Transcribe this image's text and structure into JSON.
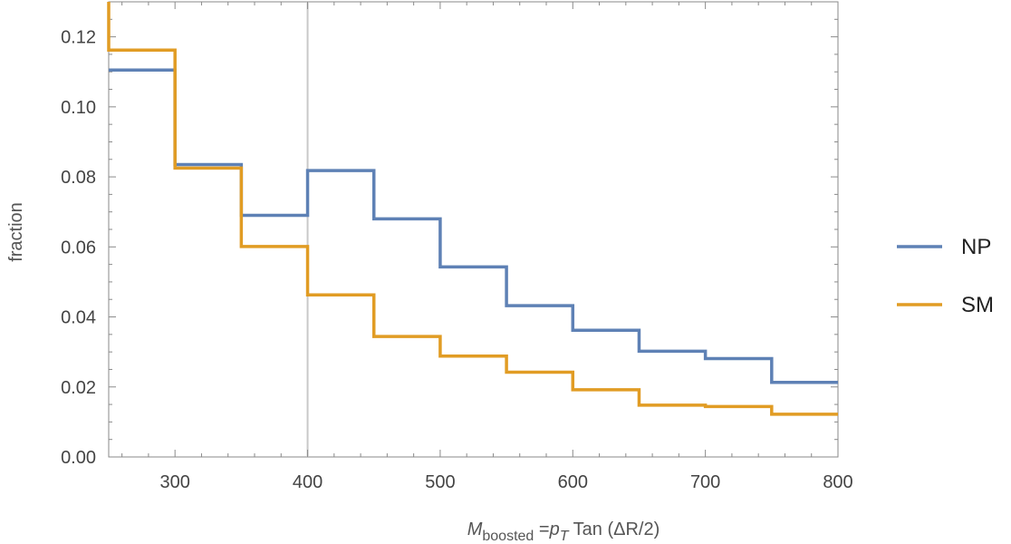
{
  "chart_data": {
    "type": "line",
    "step": true,
    "title": "",
    "xlabel": {
      "main": "M",
      "main_sub": "boosted",
      "eq": " =",
      "p": "p",
      "p_sub": "T",
      "rest": "  Tan (ΔR/2)"
    },
    "ylabel": "fraction",
    "xlim": [
      250,
      800
    ],
    "ylim": [
      0,
      0.13
    ],
    "xticks": [
      300,
      400,
      500,
      600,
      700,
      800
    ],
    "xtick_labels": [
      "300",
      "400",
      "500",
      "600",
      "700",
      "800"
    ],
    "yticks": [
      0,
      0.02,
      0.04,
      0.06,
      0.08,
      0.1,
      0.12
    ],
    "ytick_labels": [
      "0.00",
      "0.02",
      "0.04",
      "0.06",
      "0.08",
      "0.10",
      "0.12"
    ],
    "vline_x": 400,
    "vline_color": "#c8c8c8",
    "bin_edges": [
      250,
      300,
      350,
      400,
      450,
      500,
      550,
      600,
      650,
      700,
      750,
      800
    ],
    "series": [
      {
        "name": "NP",
        "color": "#5e81b5",
        "values": [
          0.1105,
          0.0835,
          0.069,
          0.0818,
          0.068,
          0.0543,
          0.0432,
          0.0362,
          0.0302,
          0.0281,
          0.0213
        ]
      },
      {
        "name": "SM",
        "color": "#e19c24",
        "start_value": 0.13,
        "values": [
          0.1162,
          0.0825,
          0.0601,
          0.0463,
          0.0344,
          0.0288,
          0.0242,
          0.0192,
          0.0148,
          0.0144,
          0.0122
        ]
      }
    ],
    "legend_position": "right",
    "grid": false
  }
}
